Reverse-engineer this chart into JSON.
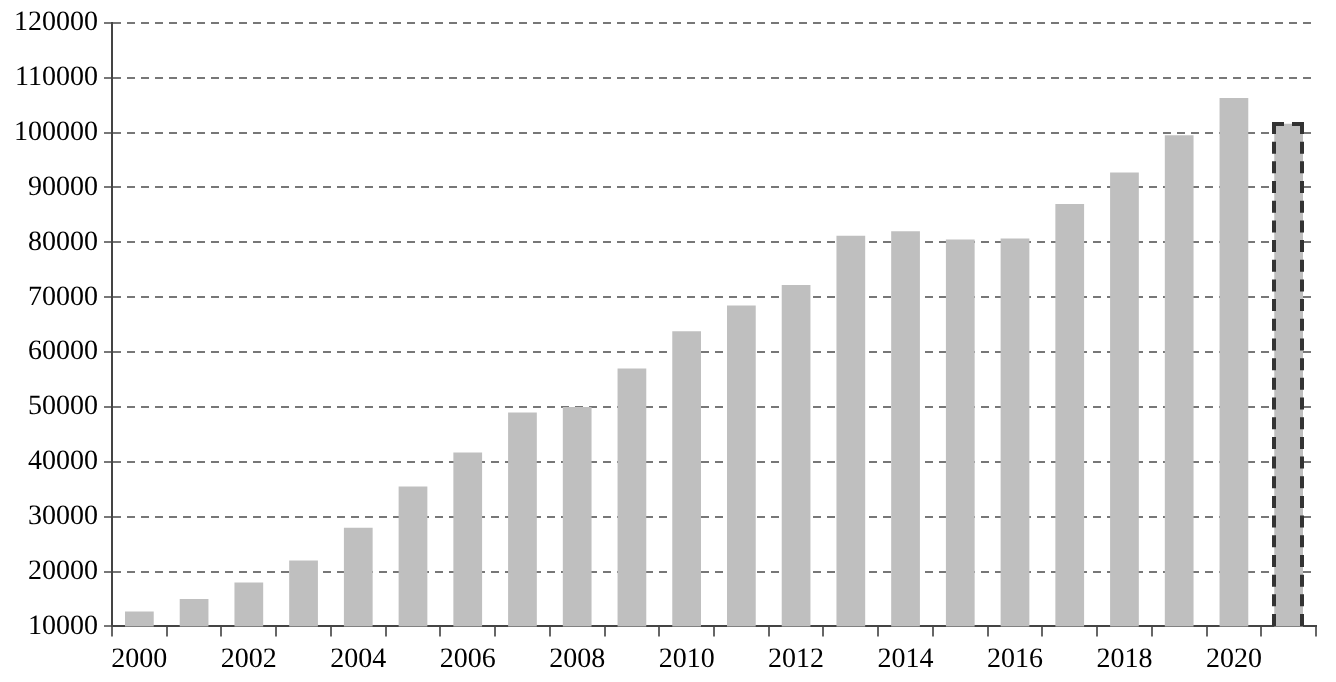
{
  "chart_data": {
    "type": "bar",
    "categories": [
      "2000",
      null,
      "2002",
      null,
      "2004",
      null,
      "2006",
      null,
      "2008",
      null,
      "2010",
      null,
      "2012",
      null,
      "2014",
      null,
      "2016",
      null,
      "2018",
      null,
      "2020",
      null
    ],
    "series": [
      {
        "color": "#bfbfbf",
        "values": [
          12700,
          15000,
          18000,
          22000,
          28000,
          35500,
          41700,
          49000,
          50000,
          57000,
          63800,
          68500,
          72200,
          81200,
          82000,
          80500,
          80700,
          87000,
          92700,
          99500,
          106300,
          null
        ]
      },
      {
        "color": "#bfbfbf",
        "line_style": "dashed",
        "values": [
          null,
          null,
          null,
          null,
          null,
          null,
          null,
          null,
          null,
          null,
          null,
          null,
          null,
          null,
          null,
          null,
          null,
          null,
          null,
          null,
          null,
          101600
        ]
      }
    ],
    "ylim": [
      10000,
      120000
    ],
    "yticks": [
      10000,
      20000,
      30000,
      40000,
      50000,
      60000,
      70000,
      80000,
      90000,
      100000,
      110000,
      120000
    ],
    "grid": "y",
    "legend": false
  }
}
